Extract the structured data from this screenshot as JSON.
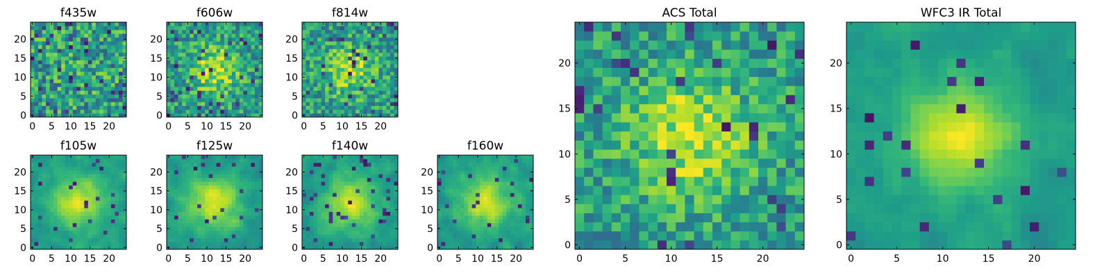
{
  "chart_data": [
    {
      "type": "heatmap",
      "title": "f435w",
      "seed": 11,
      "peak": 0.05,
      "spread": 60,
      "noise": 0.55,
      "defects": 0.07,
      "smooth": 0,
      "size": 25,
      "xticks": [
        0,
        5,
        10,
        15,
        20
      ],
      "yticks": [
        0,
        5,
        10,
        15,
        20
      ],
      "xlim": [
        0,
        25
      ],
      "ylim": [
        0,
        25
      ]
    },
    {
      "type": "heatmap",
      "title": "f606w",
      "seed": 23,
      "peak": 0.35,
      "spread": 40,
      "noise": 0.45,
      "defects": 0.05,
      "smooth": 0,
      "size": 25,
      "xticks": [
        0,
        5,
        10,
        15,
        20
      ],
      "yticks": [
        0,
        5,
        10,
        15,
        20
      ],
      "xlim": [
        0,
        25
      ],
      "ylim": [
        0,
        25
      ]
    },
    {
      "type": "heatmap",
      "title": "f814w",
      "seed": 37,
      "peak": 0.32,
      "spread": 40,
      "noise": 0.45,
      "defects": 0.05,
      "smooth": 0,
      "size": 25,
      "xticks": [
        0,
        5,
        10,
        15,
        20
      ],
      "yticks": [
        0,
        5,
        10,
        15,
        20
      ],
      "xlim": [
        0,
        25
      ],
      "ylim": [
        0,
        25
      ]
    },
    {
      "type": "heatmap",
      "title": "f105w",
      "seed": 41,
      "peak": 0.4,
      "spread": 45,
      "noise": 0.35,
      "defects": 0.04,
      "smooth": 1,
      "size": 25,
      "xticks": [
        0,
        5,
        10,
        15,
        20
      ],
      "yticks": [
        0,
        5,
        10,
        15,
        20
      ],
      "xlim": [
        0,
        25
      ],
      "ylim": [
        0,
        25
      ]
    },
    {
      "type": "heatmap",
      "title": "f125w",
      "seed": 53,
      "peak": 0.4,
      "spread": 45,
      "noise": 0.35,
      "defects": 0.04,
      "smooth": 1,
      "size": 25,
      "xticks": [
        0,
        5,
        10,
        15,
        20
      ],
      "yticks": [
        0,
        5,
        10,
        15,
        20
      ],
      "xlim": [
        0,
        25
      ],
      "ylim": [
        0,
        25
      ]
    },
    {
      "type": "heatmap",
      "title": "f140w",
      "seed": 67,
      "peak": 0.38,
      "spread": 45,
      "noise": 0.38,
      "defects": 0.05,
      "smooth": 1,
      "size": 25,
      "xticks": [
        0,
        5,
        10,
        15,
        20
      ],
      "yticks": [
        0,
        5,
        10,
        15,
        20
      ],
      "xlim": [
        0,
        25
      ],
      "ylim": [
        0,
        25
      ]
    },
    {
      "type": "heatmap",
      "title": "f160w",
      "seed": 79,
      "peak": 0.4,
      "spread": 45,
      "noise": 0.38,
      "defects": 0.05,
      "smooth": 1,
      "size": 25,
      "xticks": [
        0,
        5,
        10,
        15,
        20
      ],
      "yticks": [
        0,
        5,
        10,
        15,
        20
      ],
      "xlim": [
        0,
        25
      ],
      "ylim": [
        0,
        25
      ]
    },
    {
      "type": "heatmap",
      "title": "ACS Total",
      "seed": 97,
      "peak": 0.35,
      "spread": 45,
      "noise": 0.4,
      "defects": 0.05,
      "smooth": 0,
      "size": 25,
      "xticks": [
        0,
        5,
        10,
        15,
        20
      ],
      "yticks": [
        0,
        5,
        10,
        15,
        20
      ],
      "xlim": [
        0,
        25
      ],
      "ylim": [
        0,
        25
      ]
    },
    {
      "type": "heatmap",
      "title": "WFC3 IR Total",
      "seed": 131,
      "peak": 0.45,
      "spread": 30,
      "noise": 0.28,
      "defects": 0.04,
      "smooth": 1,
      "size": 25,
      "xticks": [
        0,
        5,
        10,
        15,
        20
      ],
      "yticks": [
        0,
        5,
        10,
        15,
        20
      ],
      "xlim": [
        0,
        25
      ],
      "ylim": [
        0,
        25
      ]
    }
  ]
}
